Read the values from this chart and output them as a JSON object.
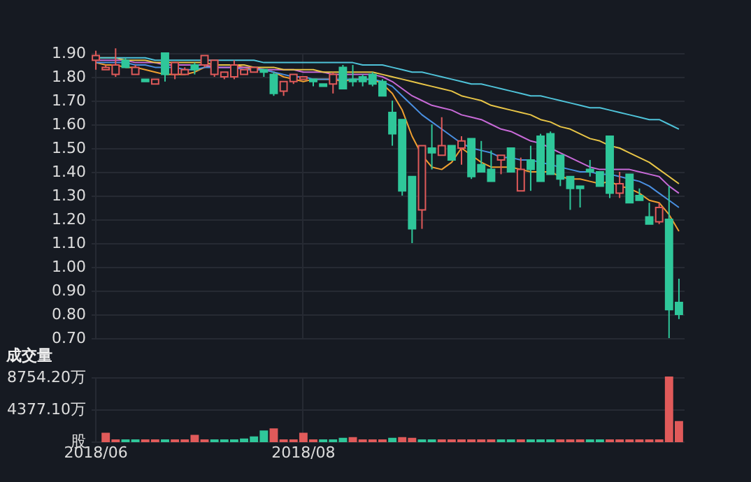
{
  "chart_data": [
    {
      "type": "candlestick",
      "categories": [
        "2018/06",
        null,
        null,
        null,
        null,
        null,
        null,
        null,
        null,
        null,
        null,
        null,
        null,
        null,
        null,
        null,
        null,
        null,
        null,
        null,
        null,
        "2018/08",
        null,
        null,
        null,
        null,
        null,
        null,
        null,
        null,
        null,
        null,
        null,
        null,
        null,
        null,
        null,
        null,
        null,
        null,
        null,
        null,
        null,
        null,
        null,
        null,
        null,
        null,
        null,
        null,
        null,
        null,
        null,
        null,
        null,
        null,
        null,
        null,
        null,
        null
      ],
      "ohlc": [
        [
          1.87,
          1.91,
          1.83,
          1.89
        ],
        [
          1.83,
          1.85,
          1.83,
          1.84
        ],
        [
          1.81,
          1.92,
          1.8,
          1.85
        ],
        [
          1.87,
          1.88,
          1.84,
          1.84
        ],
        [
          1.81,
          1.85,
          1.81,
          1.84
        ],
        [
          1.79,
          1.79,
          1.78,
          1.78
        ],
        [
          1.77,
          1.79,
          1.77,
          1.79
        ],
        [
          1.9,
          1.9,
          1.78,
          1.81
        ],
        [
          1.81,
          1.86,
          1.79,
          1.86
        ],
        [
          1.81,
          1.84,
          1.81,
          1.83
        ],
        [
          1.85,
          1.86,
          1.81,
          1.83
        ],
        [
          1.85,
          1.89,
          1.84,
          1.89
        ],
        [
          1.81,
          1.87,
          1.8,
          1.87
        ],
        [
          1.8,
          1.82,
          1.79,
          1.82
        ],
        [
          1.8,
          1.87,
          1.79,
          1.85
        ],
        [
          1.81,
          1.83,
          1.81,
          1.83
        ],
        [
          1.82,
          1.84,
          1.82,
          1.84
        ],
        [
          1.83,
          1.83,
          1.8,
          1.82
        ],
        [
          1.81,
          1.82,
          1.72,
          1.73
        ],
        [
          1.74,
          1.78,
          1.72,
          1.78
        ],
        [
          1.78,
          1.81,
          1.77,
          1.81
        ],
        [
          1.79,
          1.8,
          1.79,
          1.8
        ],
        [
          1.79,
          1.79,
          1.76,
          1.78
        ],
        [
          1.77,
          1.77,
          1.76,
          1.76
        ],
        [
          1.77,
          1.82,
          1.73,
          1.81
        ],
        [
          1.84,
          1.85,
          1.75,
          1.75
        ],
        [
          1.79,
          1.85,
          1.76,
          1.78
        ],
        [
          1.8,
          1.81,
          1.76,
          1.78
        ],
        [
          1.81,
          1.82,
          1.76,
          1.77
        ],
        [
          1.78,
          1.79,
          1.72,
          1.72
        ],
        [
          1.65,
          1.7,
          1.51,
          1.56
        ],
        [
          1.62,
          1.62,
          1.3,
          1.32
        ],
        [
          1.38,
          1.38,
          1.1,
          1.16
        ],
        [
          1.24,
          1.51,
          1.16,
          1.51
        ],
        [
          1.5,
          1.6,
          1.41,
          1.48
        ],
        [
          1.47,
          1.63,
          1.47,
          1.51
        ],
        [
          1.51,
          1.51,
          1.45,
          1.45
        ],
        [
          1.5,
          1.55,
          1.43,
          1.53
        ],
        [
          1.54,
          1.54,
          1.37,
          1.38
        ],
        [
          1.43,
          1.53,
          1.4,
          1.4
        ],
        [
          1.41,
          1.49,
          1.36,
          1.36
        ],
        [
          1.45,
          1.47,
          1.39,
          1.47
        ],
        [
          1.5,
          1.5,
          1.4,
          1.4
        ],
        [
          1.32,
          1.46,
          1.32,
          1.41
        ],
        [
          1.45,
          1.51,
          1.32,
          1.41
        ],
        [
          1.55,
          1.56,
          1.36,
          1.36
        ],
        [
          1.56,
          1.57,
          1.39,
          1.39
        ],
        [
          1.47,
          1.47,
          1.34,
          1.37
        ],
        [
          1.38,
          1.38,
          1.24,
          1.33
        ],
        [
          1.34,
          1.34,
          1.25,
          1.33
        ],
        [
          1.41,
          1.45,
          1.38,
          1.4
        ],
        [
          1.4,
          1.4,
          1.34,
          1.34
        ],
        [
          1.55,
          1.55,
          1.29,
          1.31
        ],
        [
          1.31,
          1.4,
          1.29,
          1.35
        ],
        [
          1.39,
          1.39,
          1.27,
          1.27
        ],
        [
          1.3,
          1.33,
          1.28,
          1.28
        ],
        [
          1.21,
          1.27,
          1.18,
          1.18
        ],
        [
          1.19,
          1.27,
          1.18,
          1.25
        ],
        [
          1.2,
          1.34,
          0.7,
          0.82
        ],
        [
          0.85,
          0.95,
          0.78,
          0.8
        ]
      ],
      "colors": [
        "#e05a5a",
        "#e05a5a",
        "#e05a5a",
        "#2fc79a",
        "#e05a5a",
        "#2fc79a",
        "#e05a5a",
        "#2fc79a",
        "#e05a5a",
        "#e05a5a",
        "#2fc79a",
        "#e05a5a",
        "#e05a5a",
        "#e05a5a",
        "#e05a5a",
        "#e05a5a",
        "#e05a5a",
        "#2fc79a",
        "#2fc79a",
        "#e05a5a",
        "#e05a5a",
        "#e05a5a",
        "#2fc79a",
        "#2fc79a",
        "#e05a5a",
        "#2fc79a",
        "#2fc79a",
        "#2fc79a",
        "#2fc79a",
        "#2fc79a",
        "#2fc79a",
        "#2fc79a",
        "#2fc79a",
        "#e05a5a",
        "#2fc79a",
        "#e05a5a",
        "#2fc79a",
        "#e05a5a",
        "#2fc79a",
        "#2fc79a",
        "#2fc79a",
        "#e05a5a",
        "#2fc79a",
        "#e05a5a",
        "#2fc79a",
        "#2fc79a",
        "#2fc79a",
        "#2fc79a",
        "#2fc79a",
        "#2fc79a",
        "#2fc79a",
        "#2fc79a",
        "#2fc79a",
        "#e05a5a",
        "#2fc79a",
        "#2fc79a",
        "#2fc79a",
        "#e05a5a",
        "#2fc79a",
        "#2fc79a"
      ],
      "series": [
        {
          "type": "line",
          "color": "#4fc3d9",
          "values": [
            1.88,
            1.88,
            1.88,
            1.88,
            1.88,
            1.88,
            1.87,
            1.87,
            1.87,
            1.87,
            1.87,
            1.87,
            1.87,
            1.87,
            1.87,
            1.87,
            1.87,
            1.86,
            1.86,
            1.86,
            1.86,
            1.86,
            1.86,
            1.86,
            1.86,
            1.86,
            1.86,
            1.85,
            1.85,
            1.85,
            1.84,
            1.83,
            1.82,
            1.82,
            1.81,
            1.8,
            1.79,
            1.78,
            1.77,
            1.77,
            1.76,
            1.75,
            1.74,
            1.73,
            1.72,
            1.72,
            1.71,
            1.7,
            1.69,
            1.68,
            1.67,
            1.67,
            1.66,
            1.65,
            1.64,
            1.63,
            1.62,
            1.62,
            1.6,
            1.58
          ]
        },
        {
          "type": "line",
          "color": "#e8c547",
          "values": [
            1.88,
            1.88,
            1.88,
            1.87,
            1.87,
            1.87,
            1.86,
            1.86,
            1.86,
            1.86,
            1.86,
            1.86,
            1.85,
            1.85,
            1.85,
            1.85,
            1.84,
            1.84,
            1.84,
            1.83,
            1.83,
            1.83,
            1.83,
            1.82,
            1.82,
            1.82,
            1.82,
            1.82,
            1.82,
            1.81,
            1.8,
            1.79,
            1.78,
            1.77,
            1.76,
            1.75,
            1.74,
            1.72,
            1.71,
            1.7,
            1.68,
            1.67,
            1.66,
            1.65,
            1.64,
            1.62,
            1.61,
            1.59,
            1.58,
            1.56,
            1.54,
            1.53,
            1.51,
            1.5,
            1.48,
            1.46,
            1.44,
            1.41,
            1.38,
            1.35
          ]
        },
        {
          "type": "line",
          "color": "#c86ad8",
          "values": [
            1.87,
            1.87,
            1.87,
            1.87,
            1.86,
            1.86,
            1.86,
            1.85,
            1.85,
            1.85,
            1.85,
            1.85,
            1.84,
            1.84,
            1.84,
            1.84,
            1.84,
            1.83,
            1.83,
            1.83,
            1.83,
            1.82,
            1.82,
            1.82,
            1.81,
            1.81,
            1.81,
            1.81,
            1.81,
            1.8,
            1.78,
            1.75,
            1.72,
            1.7,
            1.68,
            1.67,
            1.66,
            1.64,
            1.63,
            1.62,
            1.6,
            1.58,
            1.57,
            1.55,
            1.53,
            1.52,
            1.5,
            1.48,
            1.46,
            1.44,
            1.42,
            1.41,
            1.41,
            1.41,
            1.41,
            1.4,
            1.39,
            1.38,
            1.34,
            1.31
          ]
        },
        {
          "type": "line",
          "color": "#4a90e2",
          "values": [
            1.86,
            1.86,
            1.86,
            1.86,
            1.85,
            1.85,
            1.84,
            1.84,
            1.84,
            1.83,
            1.83,
            1.84,
            1.84,
            1.84,
            1.84,
            1.83,
            1.83,
            1.83,
            1.82,
            1.81,
            1.8,
            1.8,
            1.79,
            1.79,
            1.79,
            1.79,
            1.79,
            1.79,
            1.79,
            1.78,
            1.76,
            1.72,
            1.68,
            1.64,
            1.61,
            1.58,
            1.55,
            1.52,
            1.5,
            1.49,
            1.48,
            1.46,
            1.46,
            1.45,
            1.45,
            1.44,
            1.43,
            1.42,
            1.41,
            1.4,
            1.4,
            1.39,
            1.39,
            1.38,
            1.37,
            1.36,
            1.34,
            1.31,
            1.28,
            1.25
          ]
        },
        {
          "type": "line",
          "color": "#f0a030",
          "values": [
            1.86,
            1.85,
            1.85,
            1.84,
            1.84,
            1.83,
            1.82,
            1.81,
            1.81,
            1.81,
            1.82,
            1.84,
            1.85,
            1.85,
            1.85,
            1.84,
            1.83,
            1.83,
            1.82,
            1.8,
            1.79,
            1.78,
            1.79,
            1.79,
            1.79,
            1.78,
            1.79,
            1.79,
            1.79,
            1.77,
            1.73,
            1.66,
            1.55,
            1.47,
            1.42,
            1.41,
            1.44,
            1.5,
            1.47,
            1.44,
            1.42,
            1.42,
            1.42,
            1.41,
            1.4,
            1.4,
            1.4,
            1.38,
            1.37,
            1.37,
            1.36,
            1.35,
            1.36,
            1.34,
            1.33,
            1.31,
            1.28,
            1.27,
            1.22,
            1.15
          ]
        }
      ],
      "ylim": [
        0.7,
        1.9
      ],
      "yticks": [
        {
          "value": 0.7,
          "label": "0.70"
        },
        {
          "value": 0.8,
          "label": "0.80"
        },
        {
          "value": 0.9,
          "label": "0.90"
        },
        {
          "value": 1.0,
          "label": "1.00"
        },
        {
          "value": 1.1,
          "label": "1.10"
        },
        {
          "value": 1.2,
          "label": "1.20"
        },
        {
          "value": 1.3,
          "label": "1.30"
        },
        {
          "value": 1.4,
          "label": "1.40"
        },
        {
          "value": 1.5,
          "label": "1.50"
        },
        {
          "value": 1.6,
          "label": "1.60"
        },
        {
          "value": 1.7,
          "label": "1.70"
        },
        {
          "value": 1.8,
          "label": "1.80"
        },
        {
          "value": 1.9,
          "label": "1.90"
        }
      ],
      "grid": true,
      "tick_labels": "y"
    },
    {
      "type": "bar",
      "title": "成交量",
      "categories": [
        "2018/06",
        null,
        null,
        null,
        null,
        null,
        null,
        null,
        null,
        null,
        null,
        null,
        null,
        null,
        null,
        null,
        null,
        null,
        null,
        null,
        null,
        "2018/08",
        null,
        null,
        null,
        null,
        null,
        null,
        null,
        null,
        null,
        null,
        null,
        null,
        null,
        null,
        null,
        null,
        null,
        null,
        null,
        null,
        null,
        null,
        null,
        null,
        null,
        null,
        null,
        null,
        null,
        null,
        null,
        null,
        null,
        null,
        null,
        null,
        null,
        null
      ],
      "values": [
        null,
        1100,
        200,
        200,
        200,
        200,
        200,
        200,
        200,
        200,
        800,
        200,
        200,
        200,
        200,
        300,
        600,
        1400,
        1700,
        200,
        200,
        1100,
        200,
        200,
        200,
        400,
        500,
        200,
        200,
        200,
        400,
        500,
        400,
        200,
        200,
        200,
        200,
        200,
        200,
        200,
        200,
        200,
        200,
        200,
        200,
        200,
        200,
        200,
        200,
        200,
        200,
        200,
        200,
        200,
        200,
        200,
        200,
        200,
        8754.2,
        2700
      ],
      "colors": [
        "#e05a5a",
        "#e05a5a",
        "#e05a5a",
        "#2fc79a",
        "#2fc79a",
        "#e05a5a",
        "#e05a5a",
        "#2fc79a",
        "#e05a5a",
        "#e05a5a",
        "#e05a5a",
        "#e05a5a",
        "#2fc79a",
        "#2fc79a",
        "#2fc79a",
        "#2fc79a",
        "#2fc79a",
        "#2fc79a",
        "#e05a5a",
        "#e05a5a",
        "#e05a5a",
        "#e05a5a",
        "#e05a5a",
        "#2fc79a",
        "#2fc79a",
        "#2fc79a",
        "#e05a5a",
        "#e05a5a",
        "#e05a5a",
        "#e05a5a",
        "#2fc79a",
        "#e05a5a",
        "#e05a5a",
        "#2fc79a",
        "#2fc79a",
        "#e05a5a",
        "#e05a5a",
        "#e05a5a",
        "#e05a5a",
        "#e05a5a",
        "#e05a5a",
        "#2fc79a",
        "#2fc79a",
        "#e05a5a",
        "#2fc79a",
        "#2fc79a",
        "#2fc79a",
        "#e05a5a",
        "#e05a5a",
        "#e05a5a",
        "#2fc79a",
        "#2fc79a",
        "#e05a5a",
        "#e05a5a",
        "#e05a5a",
        "#e05a5a",
        "#e05a5a",
        "#e05a5a",
        "#e05a5a",
        "#e05a5a"
      ],
      "ylim": [
        0,
        8754.2
      ],
      "yticks": [
        {
          "value": 0,
          "label": "股"
        },
        {
          "value": 4377.1,
          "label": "4377.10万"
        },
        {
          "value": 8754.2,
          "label": "8754.20万"
        }
      ],
      "grid": true
    }
  ]
}
